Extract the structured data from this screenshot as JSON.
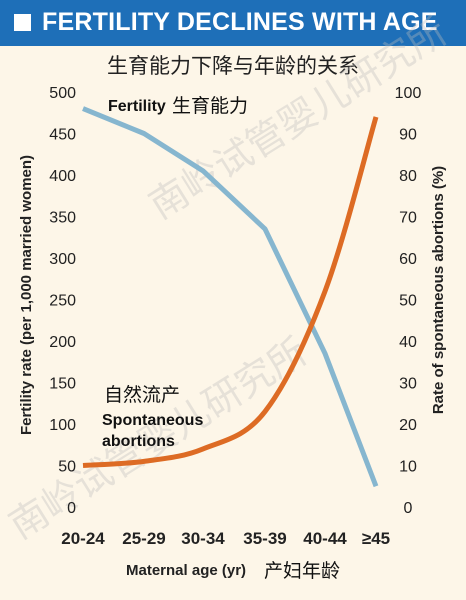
{
  "header": {
    "title": "FERTILITY DECLINES WITH AGE"
  },
  "colors": {
    "header_bg": "#1e6fb8",
    "fertility": "#86b6cf",
    "abortions": "#dd6b24",
    "background": "#fdf6e8"
  },
  "watermark": {
    "text_a": "南岭试管婴儿研究所",
    "text_b": "南岭试管婴儿研究所"
  },
  "chart_data": {
    "type": "line",
    "title": "生育能力下降与年龄的关系",
    "xlabel": "Maternal age (yr)",
    "xlabel_cn": "产妇年龄",
    "ylabel_left": "Fertility rate (per 1,000 married women)",
    "ylabel_right": "Rate of spontaneous abortions (%)",
    "categories": [
      "20-24",
      "25-29",
      "30-34",
      "35-39",
      "40-44",
      "≥45"
    ],
    "y_left_ticks": [
      "500",
      "450",
      "400",
      "350",
      "300",
      "250",
      "200",
      "150",
      "100",
      "50",
      "0"
    ],
    "y_right_ticks": [
      "100",
      "90",
      "80",
      "70",
      "60",
      "50",
      "40",
      "30",
      "20",
      "10",
      "0"
    ],
    "ylim_left": [
      0,
      500
    ],
    "ylim_right": [
      0,
      100
    ],
    "grid": false,
    "series": [
      {
        "name": "Fertility",
        "name_cn": "生育能力",
        "axis": "left",
        "values": [
          480,
          450,
          405,
          335,
          185,
          25
        ]
      },
      {
        "name": "Spontaneous abortions",
        "name_cn": "自然流产",
        "axis": "right",
        "values": [
          10,
          11,
          14,
          23,
          52,
          94
        ]
      }
    ],
    "annotations": {
      "fertility_label": "Fertility",
      "fertility_label_cn": "生育能力",
      "abortions_label_cn": "自然流产",
      "abortions_label_1": "Spontaneous",
      "abortions_label_2": "abortions"
    }
  }
}
